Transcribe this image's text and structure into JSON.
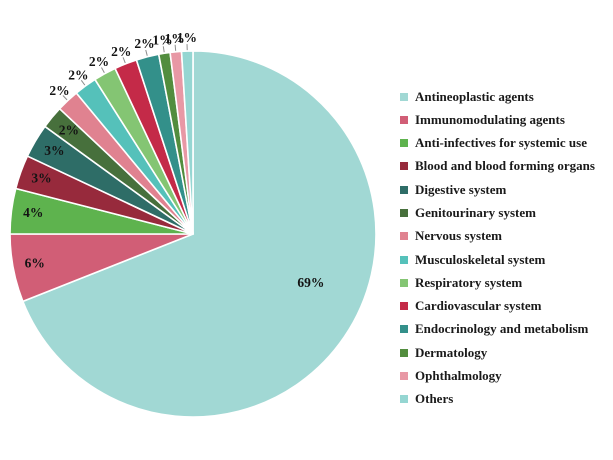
{
  "chart_data": {
    "type": "pie",
    "direction": "clockwise",
    "start_position": "12-oclock",
    "legend_position": "right",
    "total_percent": 100,
    "slices": [
      {
        "label": "Antineoplastic agents",
        "value": 69,
        "pct_label": "69%",
        "color": "#a1d8d4",
        "label_placement": "inside"
      },
      {
        "label": "Immunomodulating agents",
        "value": 6,
        "pct_label": "6%",
        "color": "#d15e76",
        "label_placement": "inside"
      },
      {
        "label": "Anti-infectives for systemic use",
        "value": 4,
        "pct_label": "4%",
        "color": "#5eb34e",
        "label_placement": "inside"
      },
      {
        "label": "Blood and blood forming organs",
        "value": 3,
        "pct_label": "3%",
        "color": "#972a3c",
        "label_placement": "inside"
      },
      {
        "label": "Digestive system",
        "value": 3,
        "pct_label": "3%",
        "color": "#2e6d67",
        "label_placement": "inside"
      },
      {
        "label": "Genitourinary system",
        "value": 2,
        "pct_label": "2%",
        "color": "#47703c",
        "label_placement": "inside"
      },
      {
        "label": "Nervous system",
        "value": 2,
        "pct_label": "2%",
        "color": "#e08290",
        "label_placement": "outside"
      },
      {
        "label": "Musculoskeletal system",
        "value": 2,
        "pct_label": "2%",
        "color": "#55c1ba",
        "label_placement": "outside"
      },
      {
        "label": "Respiratory system",
        "value": 2,
        "pct_label": "2%",
        "color": "#84c573",
        "label_placement": "outside"
      },
      {
        "label": "Cardiovascular system",
        "value": 2,
        "pct_label": "2%",
        "color": "#c42a48",
        "label_placement": "outside"
      },
      {
        "label": "Endocrinology and metabolism",
        "value": 2,
        "pct_label": "2%",
        "color": "#33908a",
        "label_placement": "outside"
      },
      {
        "label": "Dermatology",
        "value": 1,
        "pct_label": "1%",
        "color": "#528d3e",
        "label_placement": "outside"
      },
      {
        "label": "Ophthalmology",
        "value": 1,
        "pct_label": "1%",
        "color": "#e898a5",
        "label_placement": "outside"
      },
      {
        "label": "Others",
        "value": 1,
        "pct_label": "1%",
        "color": "#95d6d2",
        "label_placement": "outside"
      }
    ]
  }
}
